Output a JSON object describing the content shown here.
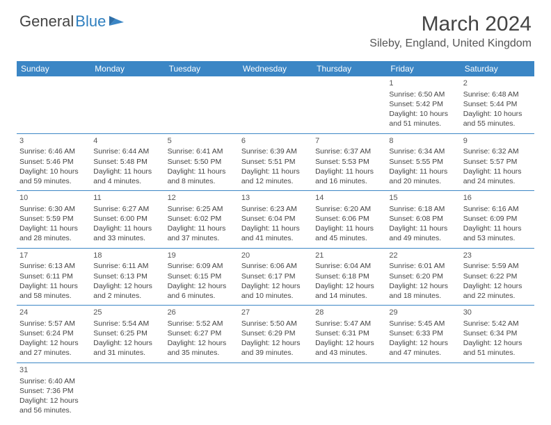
{
  "logo": {
    "text1": "General",
    "text2": "Blue"
  },
  "title": "March 2024",
  "location": "Sileby, England, United Kingdom",
  "colors": {
    "header_bg": "#3b86c5",
    "header_text": "#ffffff",
    "rule": "#3b86c5",
    "text": "#444444"
  },
  "weekdays": [
    "Sunday",
    "Monday",
    "Tuesday",
    "Wednesday",
    "Thursday",
    "Friday",
    "Saturday"
  ],
  "weeks": [
    [
      null,
      null,
      null,
      null,
      null,
      {
        "n": "1",
        "sunrise": "Sunrise: 6:50 AM",
        "sunset": "Sunset: 5:42 PM",
        "daylight": "Daylight: 10 hours and 51 minutes."
      },
      {
        "n": "2",
        "sunrise": "Sunrise: 6:48 AM",
        "sunset": "Sunset: 5:44 PM",
        "daylight": "Daylight: 10 hours and 55 minutes."
      }
    ],
    [
      {
        "n": "3",
        "sunrise": "Sunrise: 6:46 AM",
        "sunset": "Sunset: 5:46 PM",
        "daylight": "Daylight: 10 hours and 59 minutes."
      },
      {
        "n": "4",
        "sunrise": "Sunrise: 6:44 AM",
        "sunset": "Sunset: 5:48 PM",
        "daylight": "Daylight: 11 hours and 4 minutes."
      },
      {
        "n": "5",
        "sunrise": "Sunrise: 6:41 AM",
        "sunset": "Sunset: 5:50 PM",
        "daylight": "Daylight: 11 hours and 8 minutes."
      },
      {
        "n": "6",
        "sunrise": "Sunrise: 6:39 AM",
        "sunset": "Sunset: 5:51 PM",
        "daylight": "Daylight: 11 hours and 12 minutes."
      },
      {
        "n": "7",
        "sunrise": "Sunrise: 6:37 AM",
        "sunset": "Sunset: 5:53 PM",
        "daylight": "Daylight: 11 hours and 16 minutes."
      },
      {
        "n": "8",
        "sunrise": "Sunrise: 6:34 AM",
        "sunset": "Sunset: 5:55 PM",
        "daylight": "Daylight: 11 hours and 20 minutes."
      },
      {
        "n": "9",
        "sunrise": "Sunrise: 6:32 AM",
        "sunset": "Sunset: 5:57 PM",
        "daylight": "Daylight: 11 hours and 24 minutes."
      }
    ],
    [
      {
        "n": "10",
        "sunrise": "Sunrise: 6:30 AM",
        "sunset": "Sunset: 5:59 PM",
        "daylight": "Daylight: 11 hours and 28 minutes."
      },
      {
        "n": "11",
        "sunrise": "Sunrise: 6:27 AM",
        "sunset": "Sunset: 6:00 PM",
        "daylight": "Daylight: 11 hours and 33 minutes."
      },
      {
        "n": "12",
        "sunrise": "Sunrise: 6:25 AM",
        "sunset": "Sunset: 6:02 PM",
        "daylight": "Daylight: 11 hours and 37 minutes."
      },
      {
        "n": "13",
        "sunrise": "Sunrise: 6:23 AM",
        "sunset": "Sunset: 6:04 PM",
        "daylight": "Daylight: 11 hours and 41 minutes."
      },
      {
        "n": "14",
        "sunrise": "Sunrise: 6:20 AM",
        "sunset": "Sunset: 6:06 PM",
        "daylight": "Daylight: 11 hours and 45 minutes."
      },
      {
        "n": "15",
        "sunrise": "Sunrise: 6:18 AM",
        "sunset": "Sunset: 6:08 PM",
        "daylight": "Daylight: 11 hours and 49 minutes."
      },
      {
        "n": "16",
        "sunrise": "Sunrise: 6:16 AM",
        "sunset": "Sunset: 6:09 PM",
        "daylight": "Daylight: 11 hours and 53 minutes."
      }
    ],
    [
      {
        "n": "17",
        "sunrise": "Sunrise: 6:13 AM",
        "sunset": "Sunset: 6:11 PM",
        "daylight": "Daylight: 11 hours and 58 minutes."
      },
      {
        "n": "18",
        "sunrise": "Sunrise: 6:11 AM",
        "sunset": "Sunset: 6:13 PM",
        "daylight": "Daylight: 12 hours and 2 minutes."
      },
      {
        "n": "19",
        "sunrise": "Sunrise: 6:09 AM",
        "sunset": "Sunset: 6:15 PM",
        "daylight": "Daylight: 12 hours and 6 minutes."
      },
      {
        "n": "20",
        "sunrise": "Sunrise: 6:06 AM",
        "sunset": "Sunset: 6:17 PM",
        "daylight": "Daylight: 12 hours and 10 minutes."
      },
      {
        "n": "21",
        "sunrise": "Sunrise: 6:04 AM",
        "sunset": "Sunset: 6:18 PM",
        "daylight": "Daylight: 12 hours and 14 minutes."
      },
      {
        "n": "22",
        "sunrise": "Sunrise: 6:01 AM",
        "sunset": "Sunset: 6:20 PM",
        "daylight": "Daylight: 12 hours and 18 minutes."
      },
      {
        "n": "23",
        "sunrise": "Sunrise: 5:59 AM",
        "sunset": "Sunset: 6:22 PM",
        "daylight": "Daylight: 12 hours and 22 minutes."
      }
    ],
    [
      {
        "n": "24",
        "sunrise": "Sunrise: 5:57 AM",
        "sunset": "Sunset: 6:24 PM",
        "daylight": "Daylight: 12 hours and 27 minutes."
      },
      {
        "n": "25",
        "sunrise": "Sunrise: 5:54 AM",
        "sunset": "Sunset: 6:25 PM",
        "daylight": "Daylight: 12 hours and 31 minutes."
      },
      {
        "n": "26",
        "sunrise": "Sunrise: 5:52 AM",
        "sunset": "Sunset: 6:27 PM",
        "daylight": "Daylight: 12 hours and 35 minutes."
      },
      {
        "n": "27",
        "sunrise": "Sunrise: 5:50 AM",
        "sunset": "Sunset: 6:29 PM",
        "daylight": "Daylight: 12 hours and 39 minutes."
      },
      {
        "n": "28",
        "sunrise": "Sunrise: 5:47 AM",
        "sunset": "Sunset: 6:31 PM",
        "daylight": "Daylight: 12 hours and 43 minutes."
      },
      {
        "n": "29",
        "sunrise": "Sunrise: 5:45 AM",
        "sunset": "Sunset: 6:33 PM",
        "daylight": "Daylight: 12 hours and 47 minutes."
      },
      {
        "n": "30",
        "sunrise": "Sunrise: 5:42 AM",
        "sunset": "Sunset: 6:34 PM",
        "daylight": "Daylight: 12 hours and 51 minutes."
      }
    ],
    [
      {
        "n": "31",
        "sunrise": "Sunrise: 6:40 AM",
        "sunset": "Sunset: 7:36 PM",
        "daylight": "Daylight: 12 hours and 56 minutes."
      },
      null,
      null,
      null,
      null,
      null,
      null
    ]
  ]
}
